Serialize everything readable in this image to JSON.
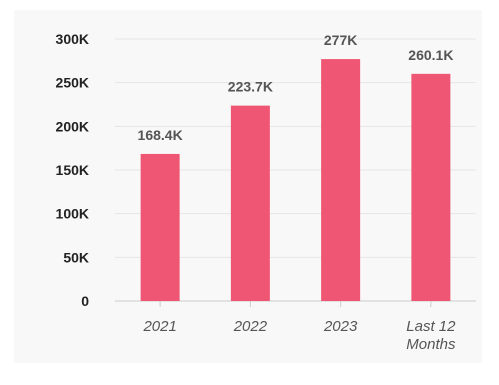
{
  "chart_data": {
    "type": "bar",
    "title": "",
    "xlabel": "",
    "ylabel": "",
    "categories": [
      [
        "2021"
      ],
      [
        "2022"
      ],
      [
        "2023"
      ],
      [
        "Last 12",
        "Months"
      ]
    ],
    "values": [
      168400,
      223700,
      277000,
      260100
    ],
    "value_labels": [
      "168.4K",
      "223.7K",
      "277K",
      "260.1K"
    ],
    "ylim": [
      0,
      300000
    ],
    "yticks": [
      0,
      50000,
      100000,
      150000,
      200000,
      250000,
      300000
    ],
    "ytick_labels": [
      "0",
      "50K",
      "100K",
      "150K",
      "200K",
      "250K",
      "300K"
    ],
    "grid": true,
    "legend": "none",
    "colors": {
      "bar": "#ef5673",
      "grid": "#e6e6e6",
      "axis": "#cccccc",
      "background": "#f8f8f8"
    }
  }
}
